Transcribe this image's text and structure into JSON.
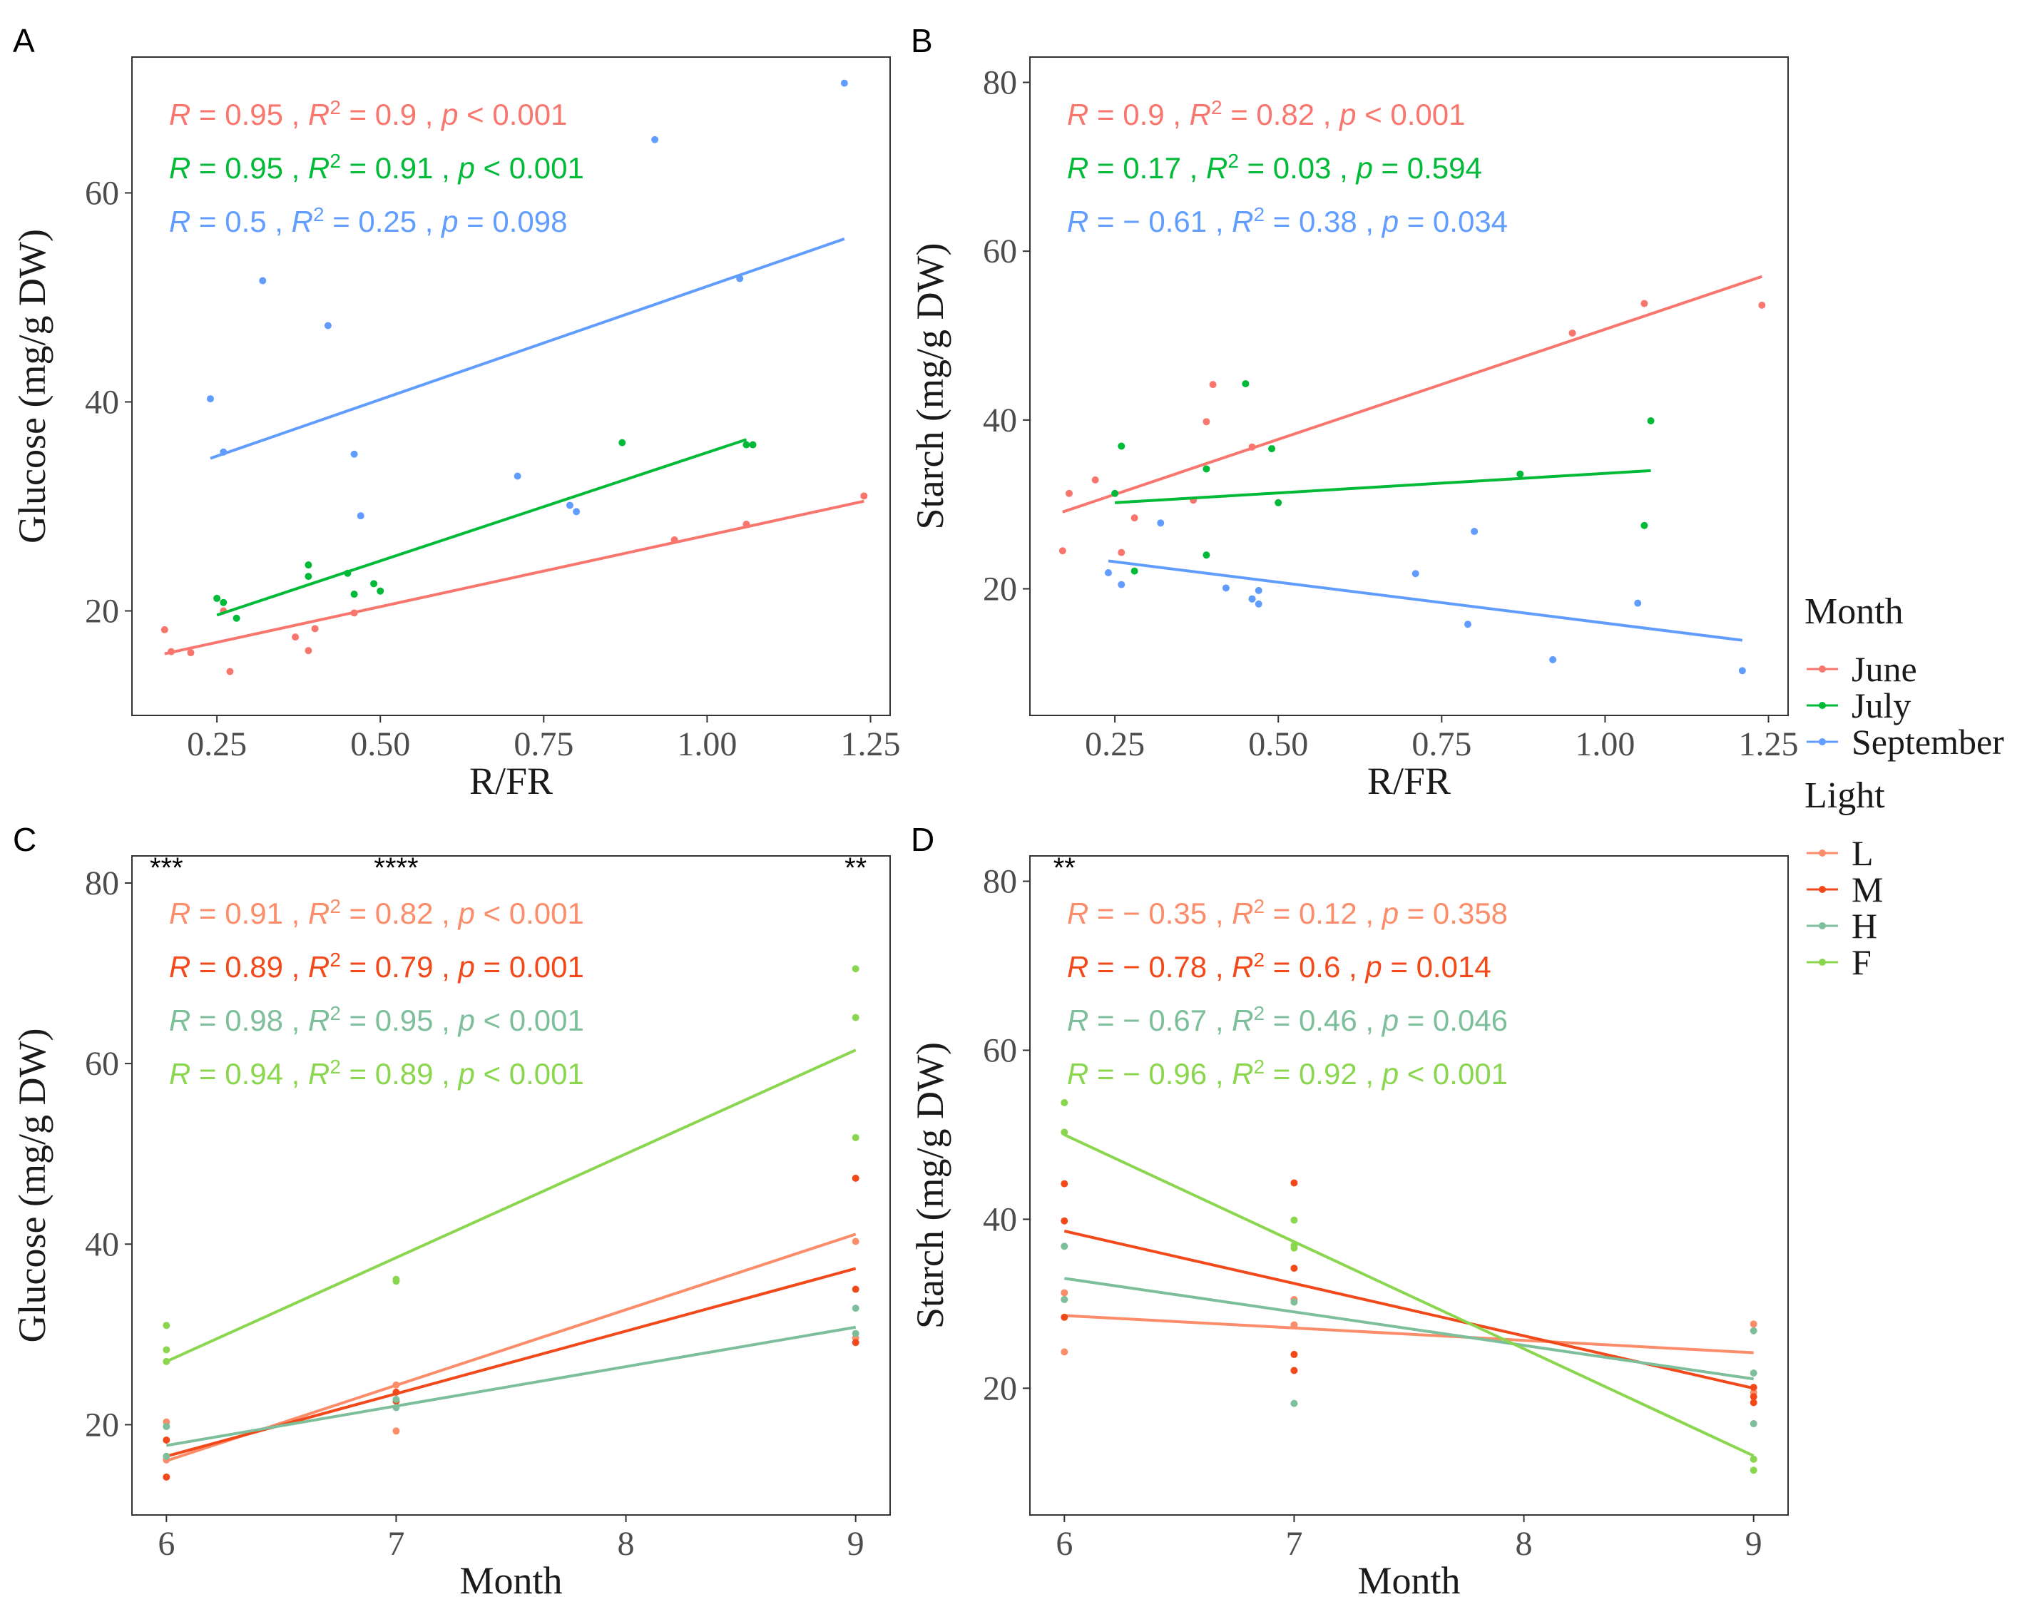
{
  "colors": {
    "June": "#F8766D",
    "July": "#00BA38",
    "September": "#619CFF",
    "L": "#FB8D6A",
    "M": "#F2491B",
    "H": "#7DBE9B",
    "F": "#8BD64F"
  },
  "legend": {
    "month_title": "Month",
    "month_items": [
      {
        "key": "June",
        "label": "June"
      },
      {
        "key": "July",
        "label": "July"
      },
      {
        "key": "September",
        "label": "September"
      }
    ],
    "light_title": "Light",
    "light_items": [
      {
        "key": "L",
        "label": "L"
      },
      {
        "key": "M",
        "label": "M"
      },
      {
        "key": "H",
        "label": "H"
      },
      {
        "key": "F",
        "label": "F"
      }
    ]
  },
  "chart_data": [
    {
      "panel": "A",
      "type": "scatter",
      "xlabel": "R/FR",
      "ylabel": "Glucose (mg/g DW)",
      "xlim": [
        0.12,
        1.28
      ],
      "ylim": [
        10,
        73
      ],
      "xticks": [
        0.25,
        0.5,
        0.75,
        1.0,
        1.25
      ],
      "xtick_labels": [
        "0.25",
        "0.50",
        "0.75",
        "1.00",
        "1.25"
      ],
      "yticks": [
        20,
        40,
        60
      ],
      "ytick_labels": [
        "20",
        "40",
        "60"
      ],
      "series": [
        {
          "name": "June",
          "color_key": "June",
          "points": [
            [
              0.17,
              18.2
            ],
            [
              0.18,
              16.1
            ],
            [
              0.21,
              16.0
            ],
            [
              0.26,
              20.0
            ],
            [
              0.27,
              14.2
            ],
            [
              0.37,
              17.5
            ],
            [
              0.39,
              16.2
            ],
            [
              0.4,
              18.3
            ],
            [
              0.46,
              19.8
            ],
            [
              0.95,
              26.8
            ],
            [
              1.06,
              28.3
            ],
            [
              1.24,
              31.0
            ]
          ],
          "fit": [
            [
              0.17,
              15.9
            ],
            [
              1.24,
              30.5
            ]
          ],
          "stat": {
            "R": "0.95",
            "R2": "0.9",
            "p": "< 0.001"
          }
        },
        {
          "name": "July",
          "color_key": "July",
          "points": [
            [
              0.25,
              21.2
            ],
            [
              0.26,
              20.8
            ],
            [
              0.28,
              19.3
            ],
            [
              0.39,
              23.3
            ],
            [
              0.39,
              24.4
            ],
            [
              0.45,
              23.6
            ],
            [
              0.46,
              21.6
            ],
            [
              0.49,
              22.6
            ],
            [
              0.5,
              21.9
            ],
            [
              0.87,
              36.1
            ],
            [
              1.06,
              35.9
            ],
            [
              1.07,
              35.9
            ]
          ],
          "fit": [
            [
              0.25,
              19.6
            ],
            [
              1.06,
              36.4
            ]
          ],
          "stat": {
            "R": "0.95",
            "R2": "0.91",
            "p": "< 0.001"
          }
        },
        {
          "name": "September",
          "color_key": "September",
          "points": [
            [
              0.24,
              40.3
            ],
            [
              0.26,
              35.2
            ],
            [
              0.32,
              51.6
            ],
            [
              0.42,
              47.3
            ],
            [
              0.46,
              35.0
            ],
            [
              0.47,
              29.1
            ],
            [
              0.71,
              32.9
            ],
            [
              0.79,
              30.1
            ],
            [
              0.8,
              29.5
            ],
            [
              0.92,
              65.1
            ],
            [
              1.05,
              51.8
            ],
            [
              1.21,
              70.5
            ]
          ],
          "fit": [
            [
              0.24,
              34.6
            ],
            [
              1.21,
              55.6
            ]
          ],
          "stat": {
            "R": "0.5",
            "R2": "0.25",
            "p": "= 0.098"
          }
        }
      ]
    },
    {
      "panel": "B",
      "type": "scatter",
      "xlabel": "R/FR",
      "ylabel": "Starch (mg/g DW)",
      "xlim": [
        0.12,
        1.28
      ],
      "ylim": [
        5,
        83
      ],
      "xticks": [
        0.25,
        0.5,
        0.75,
        1.0,
        1.25
      ],
      "xtick_labels": [
        "0.25",
        "0.50",
        "0.75",
        "1.00",
        "1.25"
      ],
      "yticks": [
        20,
        40,
        60,
        80
      ],
      "ytick_labels": [
        "20",
        "40",
        "60",
        "80"
      ],
      "series": [
        {
          "name": "June",
          "color_key": "June",
          "points": [
            [
              0.17,
              24.5
            ],
            [
              0.18,
              31.3
            ],
            [
              0.22,
              32.9
            ],
            [
              0.26,
              24.3
            ],
            [
              0.28,
              28.4
            ],
            [
              0.37,
              30.5
            ],
            [
              0.39,
              39.8
            ],
            [
              0.4,
              44.2
            ],
            [
              0.46,
              36.8
            ],
            [
              0.95,
              50.3
            ],
            [
              1.06,
              53.8
            ],
            [
              1.24,
              53.6
            ]
          ],
          "fit": [
            [
              0.17,
              29.1
            ],
            [
              1.24,
              57.0
            ]
          ],
          "stat": {
            "R": "0.9",
            "R2": "0.82",
            "p": "< 0.001"
          }
        },
        {
          "name": "July",
          "color_key": "July",
          "points": [
            [
              0.25,
              31.3
            ],
            [
              0.26,
              36.9
            ],
            [
              0.28,
              22.1
            ],
            [
              0.39,
              24.0
            ],
            [
              0.39,
              34.2
            ],
            [
              0.45,
              44.3
            ],
            [
              0.46,
              18.8
            ],
            [
              0.49,
              36.6
            ],
            [
              0.5,
              30.2
            ],
            [
              0.87,
              33.6
            ],
            [
              1.06,
              27.5
            ],
            [
              1.07,
              39.9
            ]
          ],
          "fit": [
            [
              0.25,
              30.2
            ],
            [
              1.07,
              34.0
            ]
          ],
          "stat": {
            "R": "0.17",
            "R2": "0.03",
            "p": "= 0.594"
          }
        },
        {
          "name": "September",
          "color_key": "September",
          "points": [
            [
              0.24,
              21.9
            ],
            [
              0.26,
              20.5
            ],
            [
              0.32,
              27.8
            ],
            [
              0.42,
              20.1
            ],
            [
              0.46,
              18.8
            ],
            [
              0.47,
              19.8
            ],
            [
              0.47,
              18.2
            ],
            [
              0.71,
              21.8
            ],
            [
              0.79,
              15.8
            ],
            [
              0.8,
              26.8
            ],
            [
              0.92,
              11.6
            ],
            [
              1.05,
              18.3
            ],
            [
              1.21,
              10.3
            ]
          ],
          "fit": [
            [
              0.24,
              23.3
            ],
            [
              1.21,
              13.9
            ]
          ],
          "stat": {
            "R": "− 0.61",
            "R2": "0.38",
            "p": "= 0.034"
          }
        }
      ]
    },
    {
      "panel": "C",
      "type": "scatter",
      "xlabel": "Month",
      "ylabel": "Glucose (mg/g DW)",
      "xlim": [
        5.85,
        9.15
      ],
      "ylim": [
        10,
        83
      ],
      "xticks": [
        6,
        7,
        8,
        9
      ],
      "xtick_labels": [
        "6",
        "7",
        "8",
        "9"
      ],
      "yticks": [
        20,
        40,
        60,
        80
      ],
      "ytick_labels": [
        "20",
        "40",
        "60",
        "80"
      ],
      "significance": [
        {
          "x": 6,
          "label": "***"
        },
        {
          "x": 7,
          "label": "****"
        },
        {
          "x": 9,
          "label": "**"
        }
      ],
      "series": [
        {
          "name": "L",
          "color_key": "L",
          "points": [
            [
              6,
              20.3
            ],
            [
              6,
              16.1
            ],
            [
              7,
              24.4
            ],
            [
              7,
              19.3
            ],
            [
              9,
              40.3
            ],
            [
              9,
              29.6
            ]
          ],
          "fit": [
            [
              6,
              16.0
            ],
            [
              9,
              41.1
            ]
          ],
          "stat": {
            "R": "0.91",
            "R2": "0.82",
            "p": "< 0.001"
          }
        },
        {
          "name": "M",
          "color_key": "M",
          "points": [
            [
              6,
              18.3
            ],
            [
              6,
              14.2
            ],
            [
              7,
              23.6
            ],
            [
              7,
              22.6
            ],
            [
              9,
              47.3
            ],
            [
              9,
              35.0
            ],
            [
              9,
              29.1
            ]
          ],
          "fit": [
            [
              6,
              16.5
            ],
            [
              9,
              37.3
            ]
          ],
          "stat": {
            "R": "0.89",
            "R2": "0.79",
            "p": "= 0.001"
          }
        },
        {
          "name": "H",
          "color_key": "H",
          "points": [
            [
              6,
              19.8
            ],
            [
              6,
              16.5
            ],
            [
              7,
              21.9
            ],
            [
              7,
              22.8
            ],
            [
              9,
              32.9
            ],
            [
              9,
              30.1
            ]
          ],
          "fit": [
            [
              6,
              17.7
            ],
            [
              9,
              30.8
            ]
          ],
          "stat": {
            "R": "0.98",
            "R2": "0.95",
            "p": "< 0.001"
          }
        },
        {
          "name": "F",
          "color_key": "F",
          "points": [
            [
              6,
              31.0
            ],
            [
              6,
              28.3
            ],
            [
              6,
              27.0
            ],
            [
              7,
              36.1
            ],
            [
              7,
              35.9
            ],
            [
              9,
              70.5
            ],
            [
              9,
              65.1
            ],
            [
              9,
              51.8
            ]
          ],
          "fit": [
            [
              6,
              27.0
            ],
            [
              9,
              61.5
            ]
          ],
          "stat": {
            "R": "0.94",
            "R2": "0.89",
            "p": "< 0.001"
          }
        }
      ]
    },
    {
      "panel": "D",
      "type": "scatter",
      "xlabel": "Month",
      "ylabel": "Starch (mg/g DW)",
      "xlim": [
        5.85,
        9.15
      ],
      "ylim": [
        5,
        83
      ],
      "xticks": [
        6,
        7,
        8,
        9
      ],
      "xtick_labels": [
        "6",
        "7",
        "8",
        "9"
      ],
      "yticks": [
        20,
        40,
        60,
        80
      ],
      "ytick_labels": [
        "20",
        "40",
        "60",
        "80"
      ],
      "significance": [
        {
          "x": 6,
          "label": "**"
        }
      ],
      "series": [
        {
          "name": "L",
          "color_key": "L",
          "points": [
            [
              6,
              31.3
            ],
            [
              6,
              24.3
            ],
            [
              7,
              30.5
            ],
            [
              7,
              27.5
            ],
            [
              9,
              27.6
            ],
            [
              9,
              19.5
            ]
          ],
          "fit": [
            [
              6,
              28.6
            ],
            [
              9,
              24.2
            ]
          ],
          "stat": {
            "R": "− 0.35",
            "R2": "0.12",
            "p": "= 0.358"
          }
        },
        {
          "name": "M",
          "color_key": "M",
          "points": [
            [
              6,
              44.2
            ],
            [
              6,
              39.8
            ],
            [
              6,
              28.4
            ],
            [
              7,
              44.3
            ],
            [
              7,
              34.2
            ],
            [
              7,
              24.0
            ],
            [
              7,
              22.1
            ],
            [
              9,
              20.1
            ],
            [
              9,
              19.0
            ],
            [
              9,
              18.3
            ]
          ],
          "fit": [
            [
              6,
              38.6
            ],
            [
              9,
              20.0
            ]
          ],
          "stat": {
            "R": "− 0.78",
            "R2": "0.6",
            "p": "= 0.014"
          }
        },
        {
          "name": "H",
          "color_key": "H",
          "points": [
            [
              6,
              36.8
            ],
            [
              6,
              30.5
            ],
            [
              7,
              30.2
            ],
            [
              7,
              18.2
            ],
            [
              9,
              26.8
            ],
            [
              9,
              21.8
            ],
            [
              9,
              15.8
            ]
          ],
          "fit": [
            [
              6,
              33.0
            ],
            [
              9,
              21.1
            ]
          ],
          "stat": {
            "R": "− 0.67",
            "R2": "0.46",
            "p": "= 0.046"
          }
        },
        {
          "name": "F",
          "color_key": "F",
          "points": [
            [
              6,
              53.8
            ],
            [
              6,
              50.3
            ],
            [
              7,
              39.9
            ],
            [
              7,
              36.6
            ],
            [
              7,
              36.9
            ],
            [
              9,
              11.6
            ],
            [
              9,
              10.3
            ]
          ],
          "fit": [
            [
              6,
              50.0
            ],
            [
              9,
              12.0
            ]
          ],
          "stat": {
            "R": "− 0.96",
            "R2": "0.92",
            "p": "< 0.001"
          }
        }
      ]
    }
  ]
}
